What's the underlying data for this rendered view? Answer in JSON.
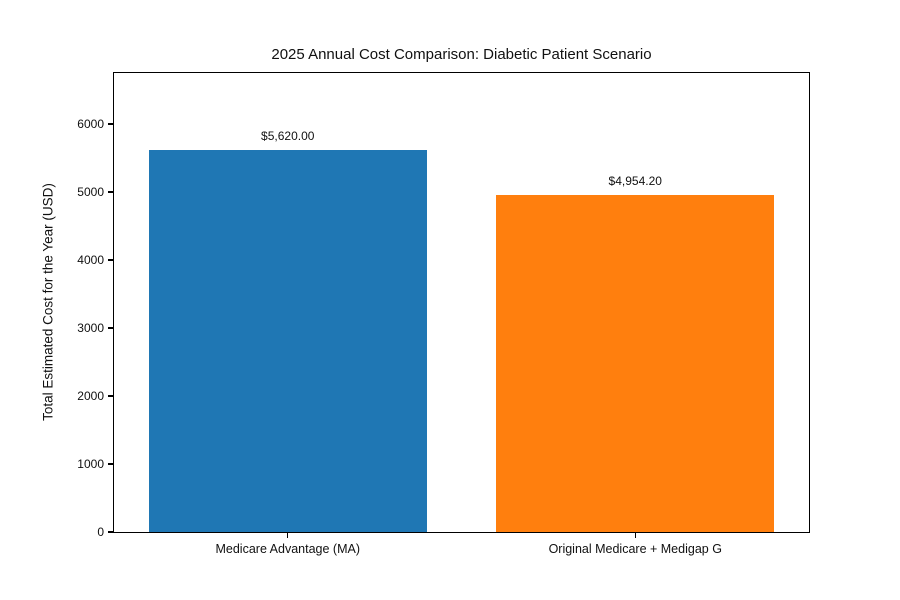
{
  "chart_data": {
    "type": "bar",
    "title": "2025 Annual Cost Comparison: Diabetic Patient Scenario",
    "xlabel": "",
    "ylabel": "Total Estimated Cost for the Year (USD)",
    "categories": [
      "Medicare Advantage (MA)",
      "Original Medicare + Medigap G"
    ],
    "values": [
      5620.0,
      4954.2
    ],
    "value_labels": [
      "$5,620.00",
      "$4,954.20"
    ],
    "bar_colors": [
      "#1f77b4",
      "#ff7f0e"
    ],
    "yticks": [
      0,
      1000,
      2000,
      3000,
      4000,
      5000,
      6000
    ],
    "ylim": [
      0,
      6750
    ],
    "grid": false,
    "legend": null,
    "background_color": "#ffffff",
    "frame_color": "#000000"
  }
}
